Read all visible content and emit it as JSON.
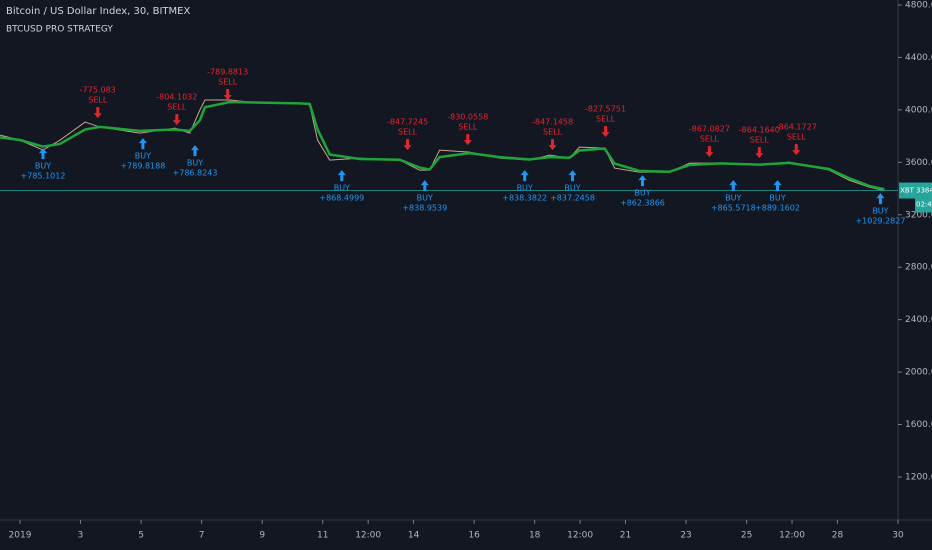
{
  "chart_data": {
    "type": "line",
    "title": "Bitcoin / US Dollar Index, 30, BITMEX",
    "subtitle": "BTCUSD PRO STRATEGY",
    "x": [
      0.34,
      1.0,
      1.76,
      2.32,
      3.15,
      3.64,
      4.96,
      6.12,
      6.61,
      6.94,
      7.11,
      7.93,
      8.92,
      10.24,
      10.57,
      10.83,
      11.23,
      12.22,
      13.54,
      14.2,
      14.53,
      14.86,
      15.85,
      16.84,
      17.83,
      18.49,
      19.15,
      19.48,
      20.31,
      20.64,
      21.46,
      22.45,
      23.12,
      24.1,
      25.42,
      26.41,
      27.73,
      28.39,
      29.05,
      29.55
    ],
    "series": [
      {
        "color": "#c9a58c",
        "values": [
          3808,
          3769,
          3693,
          3769,
          3907,
          3869,
          3823,
          3861,
          3823,
          3998,
          4075,
          4075,
          4052,
          4052,
          4037,
          3769,
          3617,
          3632,
          3617,
          3540,
          3540,
          3693,
          3678,
          3632,
          3617,
          3655,
          3632,
          3716,
          3708,
          3556,
          3525,
          3525,
          3594,
          3594,
          3579,
          3601,
          3540,
          3464,
          3411,
          3384.84
        ]
      },
      {
        "color": "#1fa33a",
        "values": [
          3790,
          3770,
          3720,
          3740,
          3850,
          3870,
          3840,
          3850,
          3840,
          3920,
          4020,
          4060,
          4055,
          4050,
          4045,
          3850,
          3660,
          3625,
          3620,
          3560,
          3545,
          3640,
          3670,
          3640,
          3622,
          3640,
          3635,
          3690,
          3705,
          3590,
          3535,
          3528,
          3580,
          3592,
          3582,
          3596,
          3548,
          3478,
          3420,
          3395
        ]
      }
    ],
    "signals": [
      {
        "side": "BUY",
        "pnl": "+785.1012",
        "x": 1.76,
        "price": 3708
      },
      {
        "side": "SELL",
        "pnl": "-775.083",
        "x": 3.57,
        "price": 3937
      },
      {
        "side": "BUY",
        "pnl": "+789.8188",
        "x": 5.06,
        "price": 3785
      },
      {
        "side": "SELL",
        "pnl": "-804.1032",
        "x": 6.18,
        "price": 3884
      },
      {
        "side": "BUY",
        "pnl": "+786.8243",
        "x": 6.78,
        "price": 3731
      },
      {
        "side": "SELL",
        "pnl": "-789.8813",
        "x": 7.86,
        "price": 4075
      },
      {
        "side": "BUY",
        "pnl": "+868.4999",
        "x": 11.63,
        "price": 3540
      },
      {
        "side": "SELL",
        "pnl": "-847.7245",
        "x": 13.8,
        "price": 3693
      },
      {
        "side": "BUY",
        "pnl": "+838.9539",
        "x": 14.37,
        "price": 3464
      },
      {
        "side": "SELL",
        "pnl": "-830.0558",
        "x": 15.79,
        "price": 3731
      },
      {
        "side": "BUY",
        "pnl": "+838.3822",
        "x": 17.67,
        "price": 3540
      },
      {
        "side": "SELL",
        "pnl": "-847.1458",
        "x": 18.59,
        "price": 3693
      },
      {
        "side": "BUY",
        "pnl": "+837.2458",
        "x": 19.25,
        "price": 3540
      },
      {
        "side": "SELL",
        "pnl": "-827.5751",
        "x": 20.34,
        "price": 3792
      },
      {
        "side": "BUY",
        "pnl": "+862.3866",
        "x": 21.56,
        "price": 3502
      },
      {
        "side": "SELL",
        "pnl": "-867.0827",
        "x": 23.77,
        "price": 3640
      },
      {
        "side": "BUY",
        "pnl": "+865.5718",
        "x": 24.56,
        "price": 3464
      },
      {
        "side": "SELL",
        "pnl": "-864.1640",
        "x": 25.42,
        "price": 3632
      },
      {
        "side": "BUY",
        "pnl": "+889.1602",
        "x": 26.02,
        "price": 3464
      },
      {
        "side": "SELL",
        "pnl": "-864.1727",
        "x": 26.64,
        "price": 3655
      },
      {
        "side": "BUY",
        "pnl": "+1029.2827",
        "x": 29.42,
        "price": 3365
      }
    ],
    "buy_color": "#2196f3",
    "sell_color": "#e3262e",
    "last_price": 3384.84,
    "symbol": "XBT",
    "countdown": "02:45",
    "xlim": [
      0.34,
      30.0
    ],
    "xticks": [
      {
        "value": 1,
        "label": "2019"
      },
      3,
      5,
      7,
      9,
      11,
      {
        "value": 12.5,
        "label": "12:00"
      },
      14,
      16,
      18,
      {
        "value": 19.5,
        "label": "12:00"
      },
      21,
      23,
      25,
      {
        "value": 26.5,
        "label": "12:00"
      },
      28,
      30
    ],
    "ylim": [
      872,
      4838
    ],
    "yticks": [
      {
        "value": 1200,
        "label": "1200.00"
      },
      {
        "value": 1600,
        "label": "1600.00"
      },
      {
        "value": 2000,
        "label": "2000.00"
      },
      {
        "value": 2400,
        "label": "2400.00"
      },
      {
        "value": 2800,
        "label": "2800.00"
      },
      {
        "value": 3200,
        "label": "3200.00"
      },
      {
        "value": 3600,
        "label": "3600.00"
      },
      {
        "value": 4000,
        "label": "4000.00"
      },
      {
        "value": 4400,
        "label": "4400.00"
      },
      {
        "value": 4800,
        "label": "4800.00"
      }
    ],
    "grid": false
  }
}
